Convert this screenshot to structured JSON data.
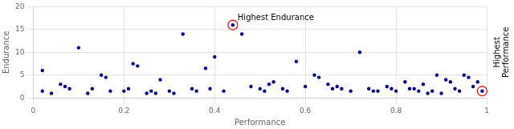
{
  "chart_data": {
    "type": "scatter",
    "xlabel": "Performance",
    "ylabel": "Endurance",
    "xlim": [
      0,
      1
    ],
    "ylim": [
      0,
      20
    ],
    "xticks": [
      0,
      0.2,
      0.4,
      0.6,
      0.8,
      1.0
    ],
    "yticks": [
      0,
      5,
      10,
      15,
      20
    ],
    "grid": true,
    "color": "#00008B",
    "marker": "circle",
    "x": [
      0.02,
      0.02,
      0.04,
      0.06,
      0.07,
      0.08,
      0.1,
      0.12,
      0.13,
      0.15,
      0.16,
      0.17,
      0.2,
      0.21,
      0.22,
      0.23,
      0.25,
      0.26,
      0.27,
      0.28,
      0.3,
      0.31,
      0.33,
      0.35,
      0.36,
      0.38,
      0.39,
      0.4,
      0.42,
      0.44,
      0.46,
      0.48,
      0.5,
      0.51,
      0.52,
      0.53,
      0.55,
      0.56,
      0.58,
      0.6,
      0.62,
      0.63,
      0.65,
      0.66,
      0.67,
      0.68,
      0.7,
      0.72,
      0.74,
      0.75,
      0.76,
      0.78,
      0.79,
      0.8,
      0.82,
      0.83,
      0.84,
      0.85,
      0.86,
      0.87,
      0.88,
      0.89,
      0.9,
      0.91,
      0.92,
      0.93,
      0.94,
      0.95,
      0.96,
      0.97,
      0.98,
      0.99
    ],
    "values": [
      6.0,
      1.5,
      1.0,
      3.0,
      2.5,
      2.0,
      11.0,
      1.0,
      2.0,
      5.0,
      4.5,
      1.5,
      1.5,
      2.0,
      7.5,
      7.0,
      1.0,
      1.5,
      1.0,
      4.0,
      1.5,
      1.0,
      14.0,
      2.0,
      1.5,
      6.5,
      2.0,
      9.0,
      1.5,
      16.0,
      14.0,
      2.5,
      2.0,
      1.5,
      3.0,
      3.5,
      2.0,
      1.5,
      8.0,
      2.5,
      5.0,
      4.5,
      3.0,
      2.0,
      2.5,
      2.0,
      1.5,
      10.0,
      2.0,
      1.5,
      1.5,
      2.5,
      2.0,
      1.5,
      3.5,
      2.0,
      2.0,
      1.5,
      3.0,
      1.0,
      1.5,
      5.0,
      1.0,
      4.0,
      3.5,
      2.0,
      1.5,
      5.0,
      4.5,
      2.5,
      3.5,
      1.5
    ],
    "annotations": [
      {
        "text": "Highest Endurance",
        "x": 0.44,
        "y": 16.0,
        "color": "red"
      },
      {
        "text": "Highest\nPerformance",
        "x": 0.99,
        "y": 1.5,
        "color": "red"
      }
    ]
  }
}
